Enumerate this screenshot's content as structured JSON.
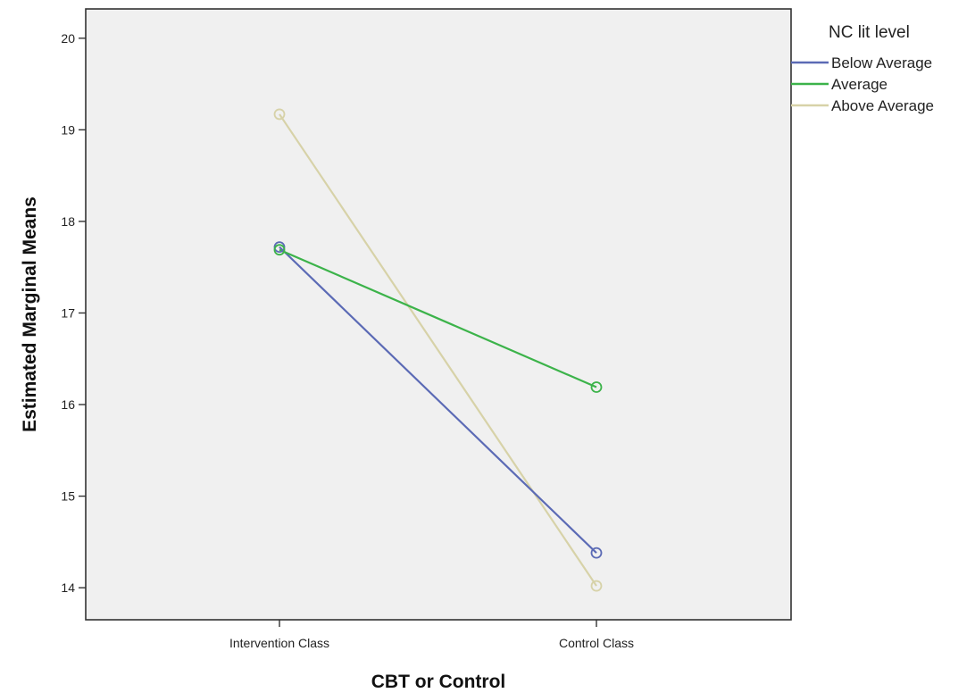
{
  "chart_data": {
    "type": "line",
    "xlabel": "CBT or Control",
    "ylabel": "Estimated Marginal Means",
    "categories": [
      "Intervention Class",
      "Control Class"
    ],
    "ylim": [
      13.65,
      20.32
    ],
    "yticks": [
      14,
      15,
      16,
      17,
      18,
      19,
      20
    ],
    "grid": false,
    "legend": {
      "title": "NC lit level",
      "placement": "right"
    },
    "plot_background": "#f0f0f0",
    "series": [
      {
        "name": "Below Average",
        "color": "#5b6ab5",
        "values": [
          17.72,
          14.38
        ]
      },
      {
        "name": "Average",
        "color": "#3cb34a",
        "values": [
          17.69,
          16.19
        ]
      },
      {
        "name": "Above Average",
        "color": "#d7d2a8",
        "values": [
          19.17,
          14.02
        ]
      }
    ]
  }
}
